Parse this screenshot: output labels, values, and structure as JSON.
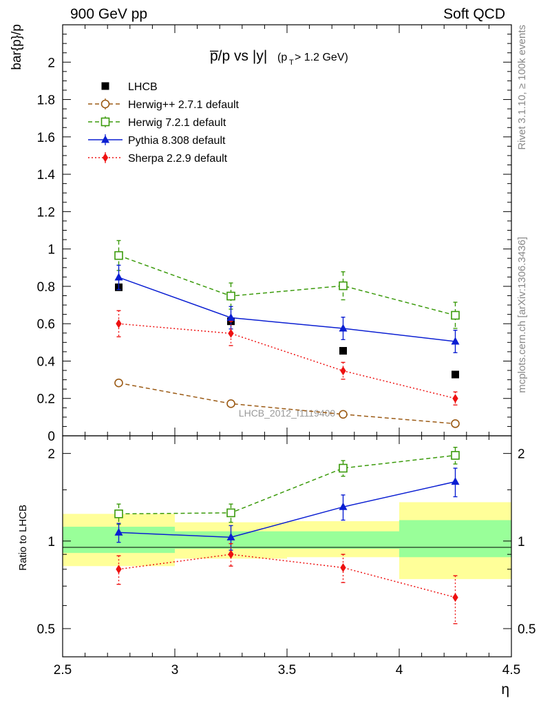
{
  "header": {
    "left": "900 GeV pp",
    "right": "Soft QCD"
  },
  "side_text": {
    "rivet": "Rivet 3.1.10, ≥ 100k events",
    "mcplots": "mcplots.cern.ch [arXiv:1306.3436]"
  },
  "colors": {
    "LHCB": "#000000",
    "Herwig++ 2.7.1 default": "#9b5a14",
    "Herwig 7.2.1 default": "#3a9a0a",
    "Pythia 8.308 default": "#0a1ed2",
    "Sherpa 2.2.9 default": "#ee1111",
    "band_inner": "#99ff99",
    "band_outer": "#ffff99"
  },
  "chart_data": [
    {
      "type": "scatter",
      "panel": "main",
      "title": "p̅/p vs |y|",
      "title_sub": "(p",
      "title_sub_index": "T",
      "title_sub_rest": " > 1.2 GeV)",
      "ylabel": "bar{p}/p",
      "xlim": [
        2.5,
        4.5
      ],
      "ylim": [
        0,
        2.2
      ],
      "yticks": [
        "0",
        "0.2",
        "0.4",
        "0.6",
        "0.8",
        "1",
        "1.2",
        "1.4",
        "1.6",
        "1.8",
        "2"
      ],
      "watermark": "LHCB_2012_I1119400",
      "legend_position": "top-left",
      "series": [
        {
          "name": "LHCB",
          "marker": "square-filled",
          "line": "none",
          "x": [
            2.75,
            3.25,
            3.75,
            4.25
          ],
          "y": [
            0.795,
            0.613,
            0.455,
            0.328
          ],
          "err": [
            0.0,
            0.0,
            0.0,
            0.0
          ]
        },
        {
          "name": "Herwig++ 2.7.1 default",
          "marker": "circle-open",
          "line": "dashed",
          "x": [
            2.75,
            3.25,
            3.75,
            4.25
          ],
          "y": [
            0.283,
            0.172,
            0.115,
            0.065
          ],
          "err": [
            0.015,
            0.01,
            0.008,
            0.006
          ]
        },
        {
          "name": "Herwig 7.2.1 default",
          "marker": "square-open",
          "line": "dashed",
          "x": [
            2.75,
            3.25,
            3.75,
            4.25
          ],
          "y": [
            0.965,
            0.748,
            0.803,
            0.645
          ],
          "err": [
            0.08,
            0.07,
            0.075,
            0.07
          ]
        },
        {
          "name": "Pythia 8.308 default",
          "marker": "triangle-filled",
          "line": "solid",
          "x": [
            2.75,
            3.25,
            3.75,
            4.25
          ],
          "y": [
            0.848,
            0.632,
            0.575,
            0.505
          ],
          "err": [
            0.065,
            0.06,
            0.06,
            0.06
          ]
        },
        {
          "name": "Sherpa 2.2.9 default",
          "marker": "diamond-filled",
          "line": "dotted",
          "x": [
            2.75,
            3.25,
            3.75,
            4.25
          ],
          "y": [
            0.6,
            0.548,
            0.348,
            0.2
          ],
          "err": [
            0.07,
            0.065,
            0.045,
            0.035
          ]
        }
      ]
    },
    {
      "type": "scatter",
      "panel": "ratio",
      "ylabel": "Ratio to LHCB",
      "xlabel": "η",
      "xlim": [
        2.5,
        4.5
      ],
      "ylim": [
        0.4,
        2.3
      ],
      "yscale": "log",
      "yticks": [
        "0.5",
        "1",
        "2"
      ],
      "xticks": [
        "2.5",
        "3",
        "3.5",
        "4",
        "4.5"
      ],
      "bands": [
        {
          "x": [
            2.5,
            3.0
          ],
          "inner": [
            0.91,
            1.12
          ],
          "outer": [
            0.82,
            1.24
          ]
        },
        {
          "x": [
            3.0,
            3.5
          ],
          "inner": [
            0.94,
            1.08
          ],
          "outer": [
            0.87,
            1.16
          ]
        },
        {
          "x": [
            3.5,
            4.0
          ],
          "inner": [
            0.94,
            1.08
          ],
          "outer": [
            0.88,
            1.17
          ]
        },
        {
          "x": [
            4.0,
            4.5
          ],
          "inner": [
            0.88,
            1.18
          ],
          "outer": [
            0.74,
            1.36
          ]
        }
      ],
      "series": [
        {
          "name": "Herwig 7.2.1 default",
          "x": [
            2.75,
            3.25,
            3.75,
            4.25
          ],
          "y": [
            1.24,
            1.25,
            1.78,
            1.97
          ],
          "err": [
            0.1,
            0.09,
            0.11,
            0.13
          ]
        },
        {
          "name": "Pythia 8.308 default",
          "x": [
            2.75,
            3.25,
            3.75,
            4.25
          ],
          "y": [
            1.07,
            1.03,
            1.31,
            1.6
          ],
          "err": [
            0.08,
            0.1,
            0.13,
            0.18
          ]
        },
        {
          "name": "Sherpa 2.2.9 default",
          "x": [
            2.75,
            3.25,
            3.75,
            4.25
          ],
          "y": [
            0.8,
            0.9,
            0.81,
            0.64
          ],
          "err": [
            0.09,
            0.08,
            0.09,
            0.12
          ]
        }
      ]
    }
  ]
}
